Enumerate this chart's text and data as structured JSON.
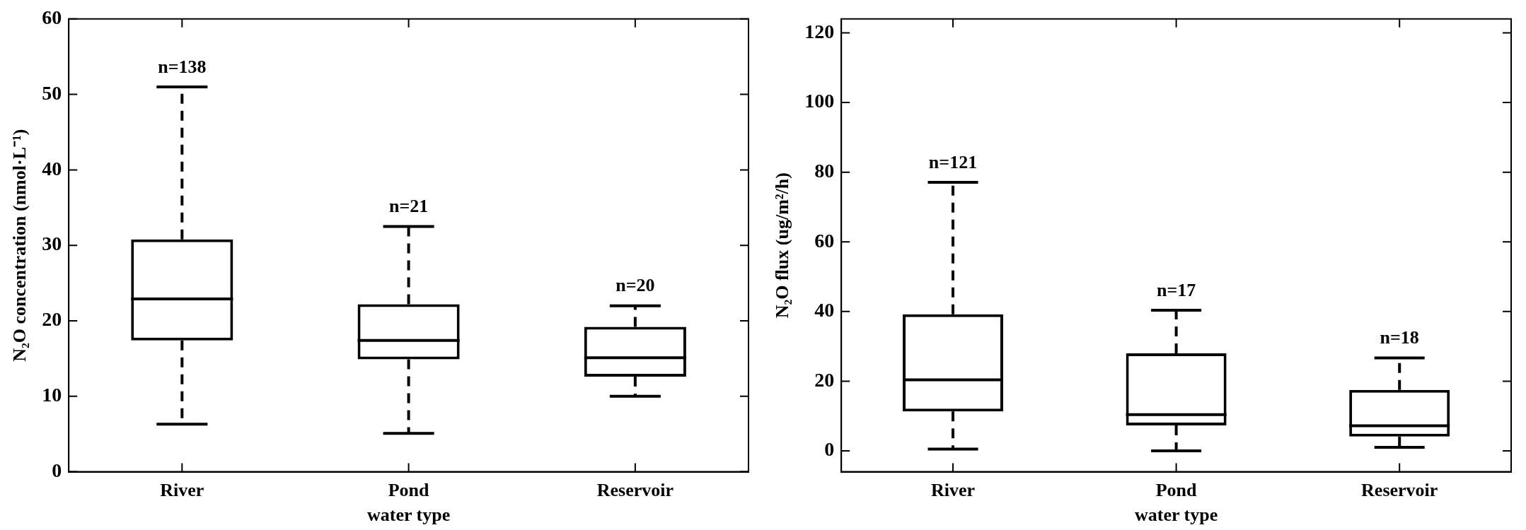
{
  "chart_data": [
    {
      "type": "box",
      "categories": [
        "River",
        "Pond",
        "Reservoir"
      ],
      "xlabel": "water type",
      "ylabel": "N₂O concentration (nmol·L⁻¹)",
      "ylim": [
        0,
        60
      ],
      "yticks": [
        0,
        10,
        20,
        30,
        40,
        50,
        60
      ],
      "grid": false,
      "line_style": "dashed",
      "color": "#000000",
      "boxes": [
        {
          "low": 6.3,
          "q1": 17.4,
          "median": 22.9,
          "q3": 30.8,
          "high": 51.0
        },
        {
          "low": 5.1,
          "q1": 14.9,
          "median": 17.4,
          "q3": 22.2,
          "high": 32.5
        },
        {
          "low": 10.0,
          "q1": 12.6,
          "median": 15.1,
          "q3": 19.2,
          "high": 22.0
        }
      ],
      "annotations": [
        "n=138",
        "n=21",
        "n=20"
      ]
    },
    {
      "type": "box",
      "categories": [
        "River",
        "Pond",
        "Reservoir"
      ],
      "xlabel": "water type",
      "ylabel": "N₂O flux (ug/m²/h)",
      "ylim": [
        -6,
        124
      ],
      "yticks": [
        0,
        20,
        40,
        60,
        80,
        100,
        120
      ],
      "grid": false,
      "line_style": "dashed",
      "color": "#000000",
      "boxes": [
        {
          "low": 0.5,
          "q1": 11.3,
          "median": 20.4,
          "q3": 39.2,
          "high": 77.1
        },
        {
          "low": 0,
          "q1": 7.3,
          "median": 10.4,
          "q3": 28.0,
          "high": 40.4
        },
        {
          "low": 1.0,
          "q1": 4.1,
          "median": 7.2,
          "q3": 17.5,
          "high": 26.7
        }
      ],
      "annotations": [
        "n=121",
        "n=17",
        "n=18"
      ]
    }
  ]
}
